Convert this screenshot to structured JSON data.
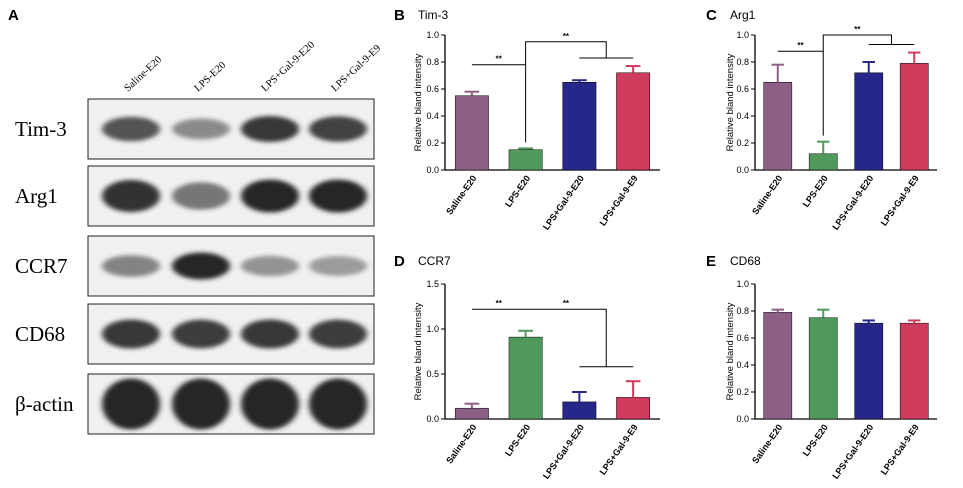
{
  "panel_a": {
    "letter": "A",
    "lanes": [
      "Saline-E20",
      "LPS-E20",
      "LPS+Gal-9-E20",
      "LPS+Gal-9-E9"
    ],
    "blots": [
      {
        "label": "Tim-3",
        "intensity": [
          0.8,
          0.5,
          0.92,
          0.88
        ],
        "thickness": 0.45
      },
      {
        "label": "Arg1",
        "intensity": [
          0.95,
          0.62,
          1.0,
          1.0
        ],
        "thickness": 0.55
      },
      {
        "label": "CCR7",
        "intensity": [
          0.55,
          1.0,
          0.45,
          0.4
        ],
        "thickness": 0.45
      },
      {
        "label": "CD68",
        "intensity": [
          0.92,
          0.9,
          0.92,
          0.9
        ],
        "thickness": 0.5
      },
      {
        "label": "β-actin",
        "intensity": [
          1.0,
          1.0,
          1.0,
          1.0
        ],
        "thickness": 0.85
      }
    ]
  },
  "chart_data": [
    {
      "panel": "B",
      "type": "bar",
      "title": "Tim-3",
      "ylabel": "Relative bland intensity",
      "categories": [
        "Saline-E20",
        "LPS-E20",
        "LPS+Gal-9-E20",
        "LPS+Gal-9-E9"
      ],
      "values": [
        0.55,
        0.15,
        0.65,
        0.72
      ],
      "errors": [
        0.03,
        0.01,
        0.015,
        0.05
      ],
      "ylim": [
        0,
        1.0
      ],
      "yticks": [
        "0.0",
        "0.2",
        "0.4",
        "0.6",
        "0.8",
        "1.0"
      ],
      "significance": [
        {
          "type": "pair",
          "from": 0,
          "to": 1,
          "y": 0.78,
          "label": "**"
        },
        {
          "type": "group",
          "from": 1,
          "group": [
            2,
            3
          ],
          "y": 0.95,
          "group_y": 0.83,
          "label": "**"
        }
      ]
    },
    {
      "panel": "C",
      "type": "bar",
      "title": "Arg1",
      "ylabel": "Relative bland intensity",
      "categories": [
        "Saline-E20",
        "LPS-E20",
        "LPS+Gal-9-E20",
        "LPS+Gal-9-E9"
      ],
      "values": [
        0.65,
        0.12,
        0.72,
        0.79
      ],
      "errors": [
        0.13,
        0.09,
        0.08,
        0.08
      ],
      "ylim": [
        0,
        1.0
      ],
      "yticks": [
        "0.0",
        "0.2",
        "0.4",
        "0.6",
        "0.8",
        "1.0"
      ],
      "significance": [
        {
          "type": "pair",
          "from": 0,
          "to": 1,
          "y": 0.88,
          "label": "**"
        },
        {
          "type": "group",
          "from": 1,
          "group": [
            2,
            3
          ],
          "y": 1.0,
          "group_y": 0.93,
          "label": "**"
        }
      ]
    },
    {
      "panel": "D",
      "type": "bar",
      "title": "CCR7",
      "ylabel": "Relative bland intensity",
      "categories": [
        "Saline-E20",
        "LPS-E20",
        "LPS+Gal-9-E20",
        "LPS+Gal-9-E9"
      ],
      "values": [
        0.12,
        0.91,
        0.19,
        0.24
      ],
      "errors": [
        0.05,
        0.07,
        0.11,
        0.18
      ],
      "ylim": [
        0,
        1.5
      ],
      "yticks": [
        "0.0",
        "0.5",
        "1.0",
        "1.5"
      ],
      "significance": [
        {
          "type": "pair",
          "from": 0,
          "to": 1,
          "y": 1.22,
          "label": "**"
        },
        {
          "type": "group_down",
          "from": 1,
          "group": [
            2,
            3
          ],
          "y": 1.22,
          "group_y": 0.58,
          "label": "**"
        }
      ]
    },
    {
      "panel": "E",
      "type": "bar",
      "title": "CD68",
      "ylabel": "Relative bland intensity",
      "categories": [
        "Saline-E20",
        "LPS-E20",
        "LPS+Gal-9-E20",
        "LPS+Gal-9-E9"
      ],
      "values": [
        0.79,
        0.75,
        0.71,
        0.71
      ],
      "errors": [
        0.02,
        0.06,
        0.02,
        0.02
      ],
      "ylim": [
        0,
        1.0
      ],
      "yticks": [
        "0.0",
        "0.2",
        "0.4",
        "0.6",
        "0.8",
        "1.0"
      ],
      "significance": []
    }
  ],
  "colors": [
    "#8e5f86",
    "#4f9a5a",
    "#27278a",
    "#cf3b5c"
  ]
}
